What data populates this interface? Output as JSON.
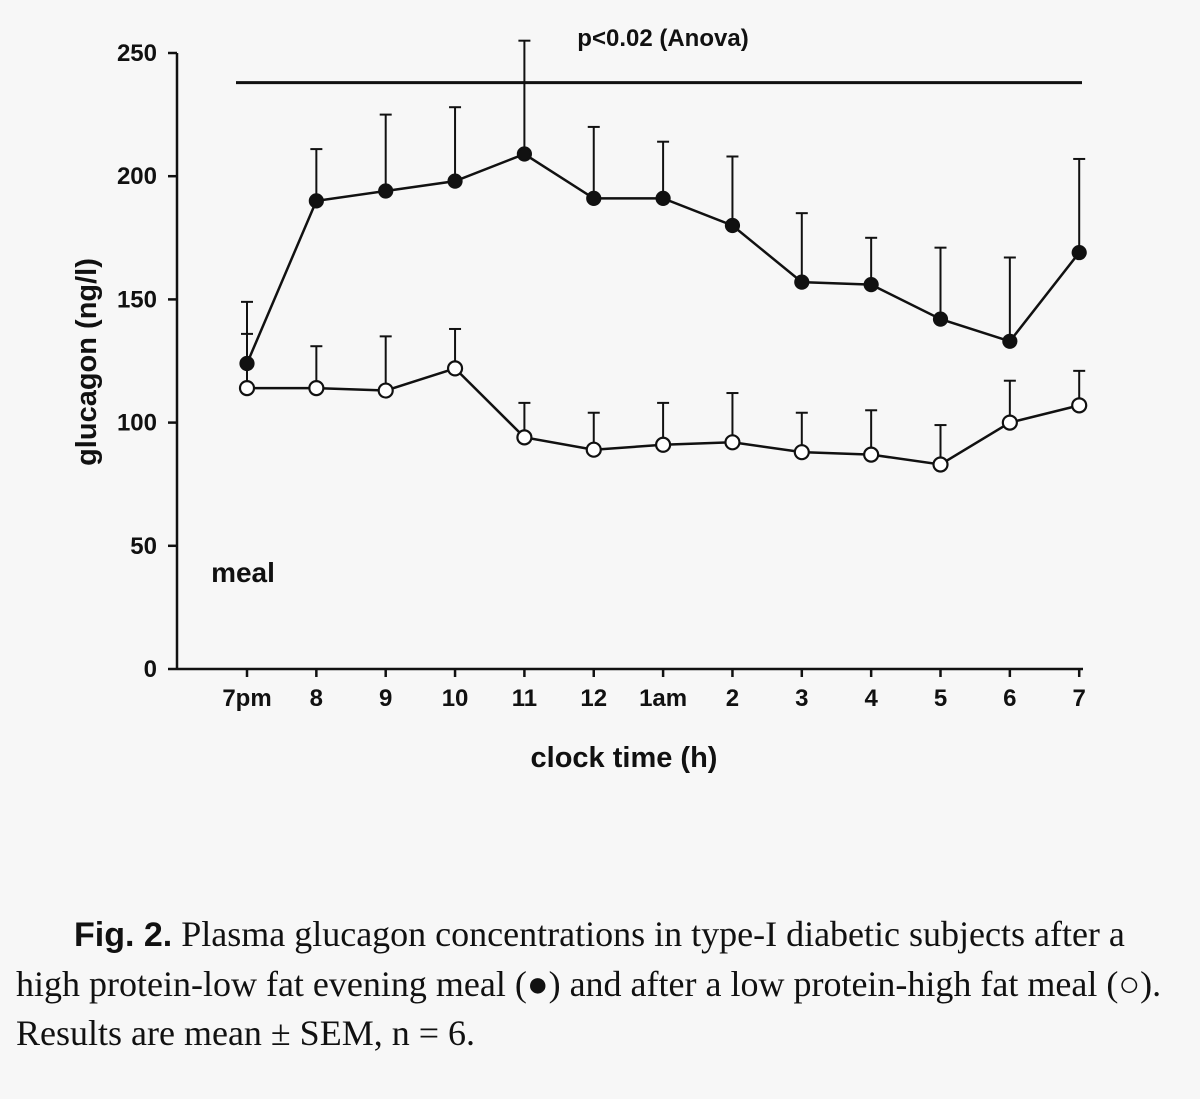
{
  "chart_data": {
    "type": "line",
    "categories": [
      "7pm",
      "8",
      "9",
      "10",
      "11",
      "12",
      "1am",
      "2",
      "3",
      "4",
      "5",
      "6",
      "7"
    ],
    "xlabel": "clock time (h)",
    "ylabel": "glucagon (ng/l)",
    "ylim": [
      0,
      250
    ],
    "yticks": [
      0,
      50,
      100,
      150,
      200,
      250
    ],
    "grid": false,
    "series": [
      {
        "marker": "filled-circle",
        "values": [
          124,
          190,
          194,
          198,
          209,
          191,
          191,
          180,
          157,
          156,
          142,
          133,
          169
        ],
        "sem": [
          25,
          21,
          31,
          30,
          46,
          29,
          23,
          28,
          28,
          19,
          29,
          34,
          38
        ]
      },
      {
        "marker": "open-circle",
        "values": [
          114,
          114,
          113,
          122,
          94,
          89,
          91,
          92,
          88,
          87,
          83,
          100,
          107
        ],
        "sem": [
          22,
          17,
          22,
          16,
          14,
          15,
          17,
          20,
          16,
          18,
          16,
          17,
          14
        ]
      }
    ],
    "annotations": {
      "significance_bar_y": 238,
      "significance_text": "p<0.02 (Anova)",
      "meal_label": "meal"
    }
  },
  "caption": {
    "fig_label": "Fig. 2.",
    "text": " Plasma glucagon concentrations in type-I diabetic subjects after a high protein-low fat evening meal (●) and after a low protein-high fat meal (○). Results are mean ± SEM, n = 6."
  }
}
